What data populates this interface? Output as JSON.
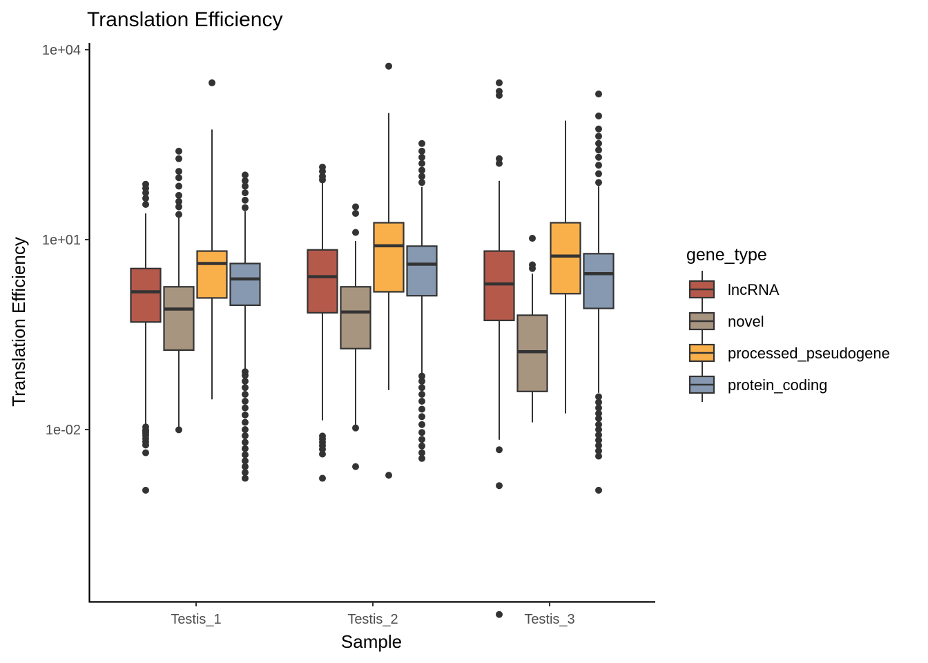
{
  "chart_data": {
    "type": "box",
    "title": "Translation Efficiency",
    "xlabel": "Sample",
    "ylabel": "Translation Efficiency",
    "yscale": "log10",
    "ylim": [
      1e-05,
      10000
    ],
    "y_ticks": [
      {
        "value": 0.01,
        "label": "1e-02"
      },
      {
        "value": 10,
        "label": "1e+01"
      },
      {
        "value": 10000,
        "label": "1e+04"
      }
    ],
    "categories": [
      "Testis_1",
      "Testis_2",
      "Testis_3"
    ],
    "legend": {
      "title": "gene_type",
      "position": "right"
    },
    "series": [
      {
        "name": "lncRNA",
        "color": "#b5594b",
        "boxes": [
          {
            "whisker_low": 0.012,
            "q1": 0.5,
            "median": 1.5,
            "q3": 3.5,
            "whisker_high": 26,
            "outliers": [
              0.0011,
              0.0043,
              0.0057,
              0.0064,
              0.0072,
              0.0081,
              0.0088,
              0.0094,
              0.0098,
              0.011,
              36,
              45,
              55,
              65,
              75
            ]
          },
          {
            "whisker_low": 0.014,
            "q1": 0.7,
            "median": 2.6,
            "q3": 6.9,
            "whisker_high": 80,
            "outliers": [
              0.0017,
              0.0041,
              0.0049,
              0.0056,
              0.0063,
              0.0071,
              0.0079,
              88,
              100,
              120,
              140
            ]
          },
          {
            "whisker_low": 0.0069,
            "q1": 0.53,
            "median": 2.0,
            "q3": 6.6,
            "whisker_high": 85,
            "outliers": [
              1.2e-05,
              0.0013,
              0.0048,
              160,
              190,
              1900,
              2200,
              3000
            ]
          }
        ]
      },
      {
        "name": "novel",
        "color": "#a89580",
        "boxes": [
          {
            "whisker_low": 0.011,
            "q1": 0.18,
            "median": 0.8,
            "q3": 1.8,
            "whisker_high": 23,
            "outliers": [
              0.0099,
              25,
              33,
              40,
              50,
              70,
              95,
              120,
              190,
              250
            ]
          },
          {
            "whisker_low": 0.0115,
            "q1": 0.19,
            "median": 0.72,
            "q3": 1.8,
            "whisker_high": 9.5,
            "outliers": [
              0.0026,
              0.0106,
              13,
              26,
              33
            ]
          },
          {
            "whisker_low": 0.013,
            "q1": 0.04,
            "median": 0.17,
            "q3": 0.64,
            "whisker_high": 2.9,
            "outliers": [
              3.5,
              4.0,
              10.5
            ]
          }
        ]
      },
      {
        "name": "processed_pseudogene",
        "color": "#f9b04a",
        "boxes": [
          {
            "whisker_low": 0.03,
            "q1": 1.2,
            "median": 4.2,
            "q3": 6.6,
            "whisker_high": 550,
            "outliers": [
              3000
            ]
          },
          {
            "whisker_low": 0.042,
            "q1": 1.5,
            "median": 8.0,
            "q3": 18.5,
            "whisker_high": 1000,
            "outliers": [
              0.0019,
              5500
            ]
          },
          {
            "whisker_low": 0.018,
            "q1": 1.4,
            "median": 5.5,
            "q3": 18.5,
            "whisker_high": 760
          }
        ]
      },
      {
        "name": "protein_coding",
        "color": "#8699b1",
        "boxes": [
          {
            "whisker_low": 0.09,
            "q1": 0.92,
            "median": 2.4,
            "q3": 4.2,
            "whisker_high": 28,
            "outliers": [
              0.0017,
              0.0021,
              0.0026,
              0.0032,
              0.004,
              0.005,
              0.0063,
              0.008,
              0.01,
              0.013,
              0.017,
              0.022,
              0.028,
              0.036,
              0.046,
              0.058,
              0.072,
              0.082,
              32,
              42,
              55,
              70,
              85,
              105
            ]
          },
          {
            "whisker_low": 0.078,
            "q1": 1.3,
            "median": 4.1,
            "q3": 7.9,
            "whisker_high": 68,
            "outliers": [
              0.0035,
              0.0043,
              0.0055,
              0.007,
              0.009,
              0.012,
              0.016,
              0.021,
              0.028,
              0.036,
              0.046,
              0.058,
              0.07,
              80,
              100,
              125,
              160,
              200,
              250,
              330
            ]
          },
          {
            "whisker_low": 0.038,
            "q1": 0.82,
            "median": 2.9,
            "q3": 6.0,
            "whisker_high": 70,
            "outliers": [
              0.0011,
              0.0038,
              0.0046,
              0.0056,
              0.0068,
              0.0082,
              0.01,
              0.012,
              0.015,
              0.018,
              0.022,
              0.027,
              0.033,
              80,
              110,
              150,
              200,
              260,
              330,
              430,
              560,
              900,
              2000
            ]
          }
        ]
      }
    ]
  }
}
